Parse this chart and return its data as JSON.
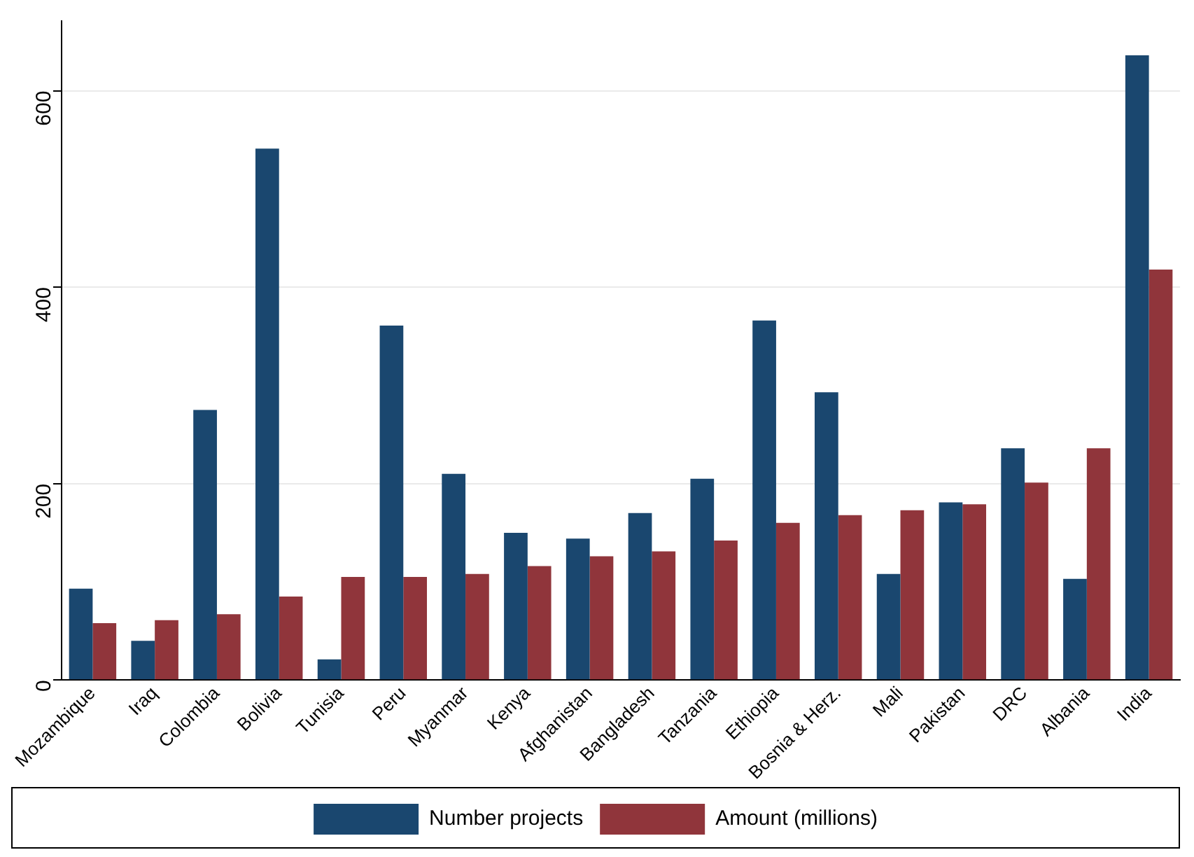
{
  "chart_data": {
    "type": "bar",
    "categories": [
      "Mozambique",
      "Iraq",
      "Colombia",
      "Bolivia",
      "Tunisia",
      "Peru",
      "Myanmar",
      "Kenya",
      "Afghanistan",
      "Bangladesh",
      "Tanzania",
      "Ethiopia",
      "Bosnia & Herz.",
      "Mali",
      "Pakistan",
      "DRC",
      "Albania",
      "India"
    ],
    "series": [
      {
        "name": "Number projects",
        "color": "#1a476f",
        "values": [
          93,
          40,
          275,
          541,
          21,
          361,
          210,
          150,
          144,
          170,
          205,
          366,
          293,
          108,
          181,
          236,
          103,
          636
        ]
      },
      {
        "name": "Amount (millions)",
        "color": "#90353b",
        "values": [
          58,
          61,
          67,
          85,
          105,
          105,
          108,
          116,
          126,
          131,
          142,
          160,
          168,
          173,
          179,
          201,
          236,
          418
        ]
      }
    ],
    "ylim": [
      0,
      671
    ],
    "yticks": [
      0,
      200,
      400,
      600
    ],
    "grid": "y",
    "legend": "bottom"
  }
}
